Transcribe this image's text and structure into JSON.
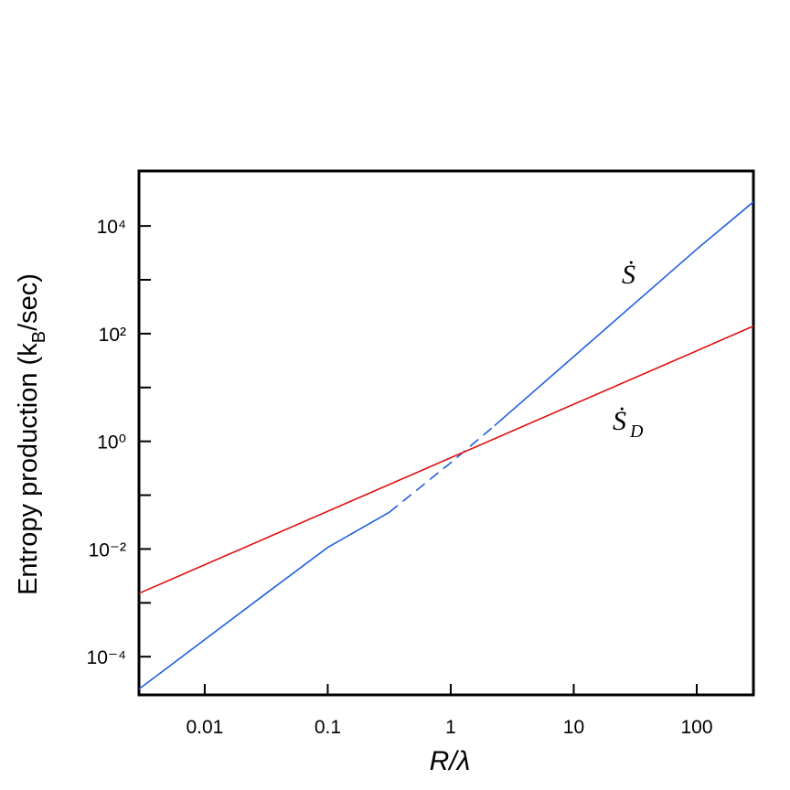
{
  "chart_data": {
    "type": "line",
    "xlabel": "R/λ",
    "ylabel_parts": [
      "Entropy production (k",
      "B",
      "/sec)"
    ],
    "xlog": true,
    "ylog": true,
    "xlim": [
      0.00292,
      289
    ],
    "ylim": [
      1.95e-05,
      105000
    ],
    "xticks": [
      0.01,
      0.1,
      1,
      10,
      100
    ],
    "yticks": [
      {
        "value": 0.0001,
        "label": "10⁻⁴"
      },
      {
        "value": 0.01,
        "label": "10⁻²"
      },
      {
        "value": 1,
        "label": "10⁰"
      },
      {
        "value": 100,
        "label": "10²"
      },
      {
        "value": 10000,
        "label": "10⁴"
      }
    ],
    "yminorticks": [
      0.001,
      0.1,
      10,
      1000
    ],
    "series": [
      {
        "name": "Ṡ",
        "color": "#1f5fe0",
        "x": [
          0.00292,
          0.0316,
          0.1,
          0.316,
          1,
          2.27,
          100,
          289
        ],
        "values": [
          2.5e-05,
          0.0015,
          0.0107,
          0.048,
          0.4,
          1.95,
          3700,
          28000
        ],
        "dashed_range": [
          0.316,
          2.27
        ]
      },
      {
        "name": "Ṡ",
        "subscript": "D",
        "color": "#e01010",
        "x": [
          0.00292,
          289
        ],
        "values": [
          0.0015,
          138
        ]
      }
    ]
  }
}
